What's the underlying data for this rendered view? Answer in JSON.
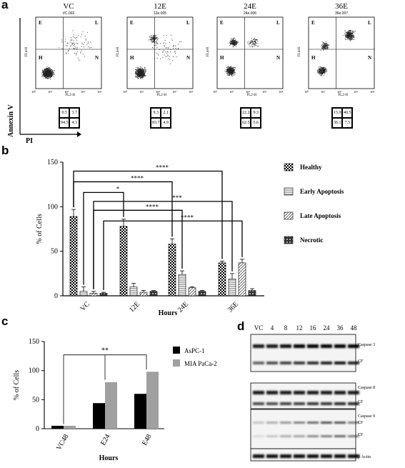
{
  "panel_letters": {
    "a": "a",
    "b": "b",
    "c": "c",
    "d": "d"
  },
  "panel_a": {
    "plots": [
      {
        "title": "VC",
        "sub": "VC.002",
        "q": [
          "0.5",
          "3.7",
          "94.5",
          "4.3"
        ]
      },
      {
        "title": "12E",
        "sub": "12e.005",
        "q": [
          "9.3",
          "2.1",
          "83.7",
          "4.9"
        ]
      },
      {
        "title": "24E",
        "sub": "24e.006",
        "q": [
          "22.2",
          "9.3",
          "62.5",
          "5.6"
        ]
      },
      {
        "title": "36E",
        "sub": "36e.007",
        "q": [
          "15.9",
          "40.5",
          "36.1",
          "7.5"
        ]
      }
    ],
    "quadrants": {
      "E": "E",
      "L": "L",
      "H": "H",
      "N": "N"
    },
    "ylab": "FL4-H",
    "xlab": "FL2-H",
    "axis_y": "Annexin V",
    "axis_x": "PI"
  },
  "chart_data": [
    {
      "type": "bar",
      "panel": "b",
      "categories": [
        "VC",
        "12E",
        "24E",
        "36E"
      ],
      "xlabel": "Hours",
      "ylabel": "% of Cells",
      "ylim": [
        0,
        150
      ],
      "yticks": [
        0,
        50,
        100,
        150
      ],
      "series": [
        {
          "name": "Healthy",
          "values": [
            89,
            78,
            58,
            37
          ],
          "errors": [
            8,
            8,
            6,
            2
          ]
        },
        {
          "name": "Early Apoptosis",
          "values": [
            5,
            10,
            24,
            19
          ],
          "errors": [
            5,
            4,
            4,
            6
          ]
        },
        {
          "name": "Late Apoptosis",
          "values": [
            3,
            4,
            9,
            37
          ],
          "errors": [
            2,
            2,
            1,
            4
          ]
        },
        {
          "name": "Necrotic",
          "values": [
            3,
            5,
            5,
            6
          ],
          "errors": [
            1,
            1,
            1,
            2
          ]
        }
      ],
      "significance": [
        "*",
        "****",
        "***",
        "****",
        "****"
      ]
    },
    {
      "type": "bar",
      "panel": "c",
      "categories": [
        "VC48",
        "E24",
        "E48"
      ],
      "xlabel": "Hours",
      "ylabel": "% of Cells",
      "ylim": [
        0,
        150
      ],
      "yticks": [
        0,
        50,
        100,
        150
      ],
      "series": [
        {
          "name": "AsPC-1",
          "values": [
            5,
            44,
            60
          ],
          "color": "#000000"
        },
        {
          "name": "MIA PaCa-2",
          "values": [
            5,
            80,
            98
          ],
          "color": "#a0a0a0"
        }
      ],
      "significance": "**"
    }
  ],
  "panel_d": {
    "lanes": [
      "VC",
      "4",
      "8",
      "12",
      "16",
      "24",
      "36",
      "48"
    ],
    "labels": [
      "Caspase 3",
      "CF",
      "Caspase 8",
      "CF",
      "Caspase 9",
      "CF",
      "CF",
      "β Actin"
    ]
  }
}
